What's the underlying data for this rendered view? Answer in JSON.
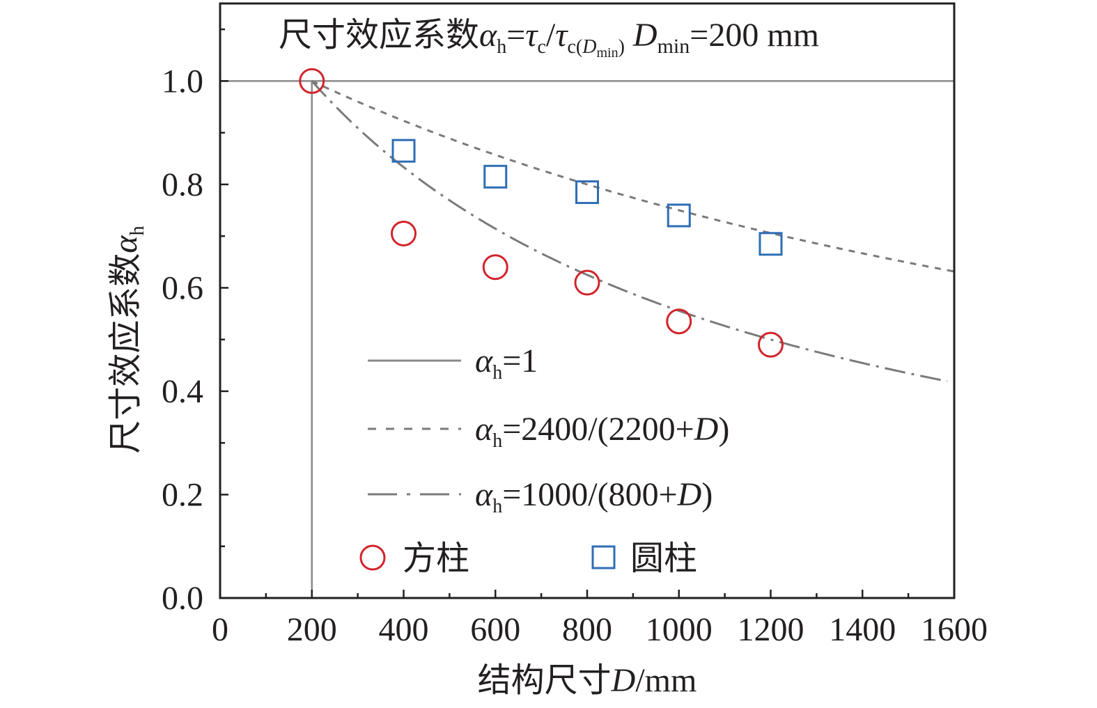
{
  "chart_data": {
    "type": "scatter",
    "title": "尺寸效应系数αh=τc/τc(Dmin) Dmin=200 mm",
    "title_parts": {
      "lead": "尺寸效应系数",
      "alpha": "α",
      "alpha_sub": "h",
      "eq": "=",
      "tau": "τ",
      "tau_sub": "c",
      "slash": "/",
      "tau2_sub_lead": "c(",
      "tau2_sub_D": "D",
      "tau2_sub_min": "min",
      "tau2_sub_close": ")",
      "dmin_D": "D",
      "dmin_sub": "min",
      "dmin_value": "=200 mm"
    },
    "xlabel": "结构尺寸D/mm",
    "xlabel_parts": {
      "lead": "结构尺寸",
      "var": "D",
      "unit": "/mm"
    },
    "ylabel": "尺寸效应系数αh",
    "ylabel_parts": {
      "lead": "尺寸效应系数",
      "var": "α",
      "sub": "h"
    },
    "xlim": [
      0,
      1600
    ],
    "ylim": [
      0,
      1.15
    ],
    "xticks": [
      0,
      200,
      400,
      600,
      800,
      1000,
      1200,
      1400,
      1600
    ],
    "xtick_labels": [
      "0",
      "200",
      "400",
      "600",
      "800",
      "1000",
      "1200",
      "1400",
      "1600"
    ],
    "yticks": [
      0,
      0.2,
      0.4,
      0.6,
      0.8,
      1.0
    ],
    "ytick_labels": [
      "0.0",
      "0.2",
      "0.4",
      "0.6",
      "0.8",
      "1.0"
    ],
    "grid": false,
    "reference_lines": [
      {
        "type": "horizontal",
        "y": 1.0,
        "xmin": 0,
        "xmax": 1600
      },
      {
        "type": "vertical",
        "x": 200,
        "ymin": 0,
        "ymax": 1.0
      }
    ],
    "curves": [
      {
        "label": "αh=1",
        "label_value": "=1",
        "formula": "1",
        "style": "solid",
        "x_from": 200,
        "x_to": 1600
      },
      {
        "label": "αh=2400/(2200+D)",
        "label_value": "=2400/(2200+",
        "formula": "2400/(2200+D)",
        "style": "dashed",
        "x_from": 200,
        "x_to": 1600
      },
      {
        "label": "αh=1000/(800+D)",
        "label_value": "=1000/(800+",
        "formula": "1000/(800+D)",
        "style": "dashdot",
        "x_from": 200,
        "x_to": 1585
      }
    ],
    "series": [
      {
        "name": "方柱",
        "marker": "circle",
        "color": "#d2232a",
        "x": [
          200,
          400,
          600,
          800,
          1000,
          1200
        ],
        "y": [
          1.0,
          0.705,
          0.64,
          0.61,
          0.535,
          0.49
        ]
      },
      {
        "name": "圆柱",
        "marker": "square",
        "color": "#2e6db4",
        "x": [
          400,
          600,
          800,
          1000,
          1200
        ],
        "y": [
          0.865,
          0.815,
          0.785,
          0.74,
          0.685
        ]
      }
    ],
    "legend_position": "lower-center",
    "colors": {
      "axis": "#231f20",
      "reference": "#8a8a8c",
      "curve": "#7a7a7c"
    }
  }
}
